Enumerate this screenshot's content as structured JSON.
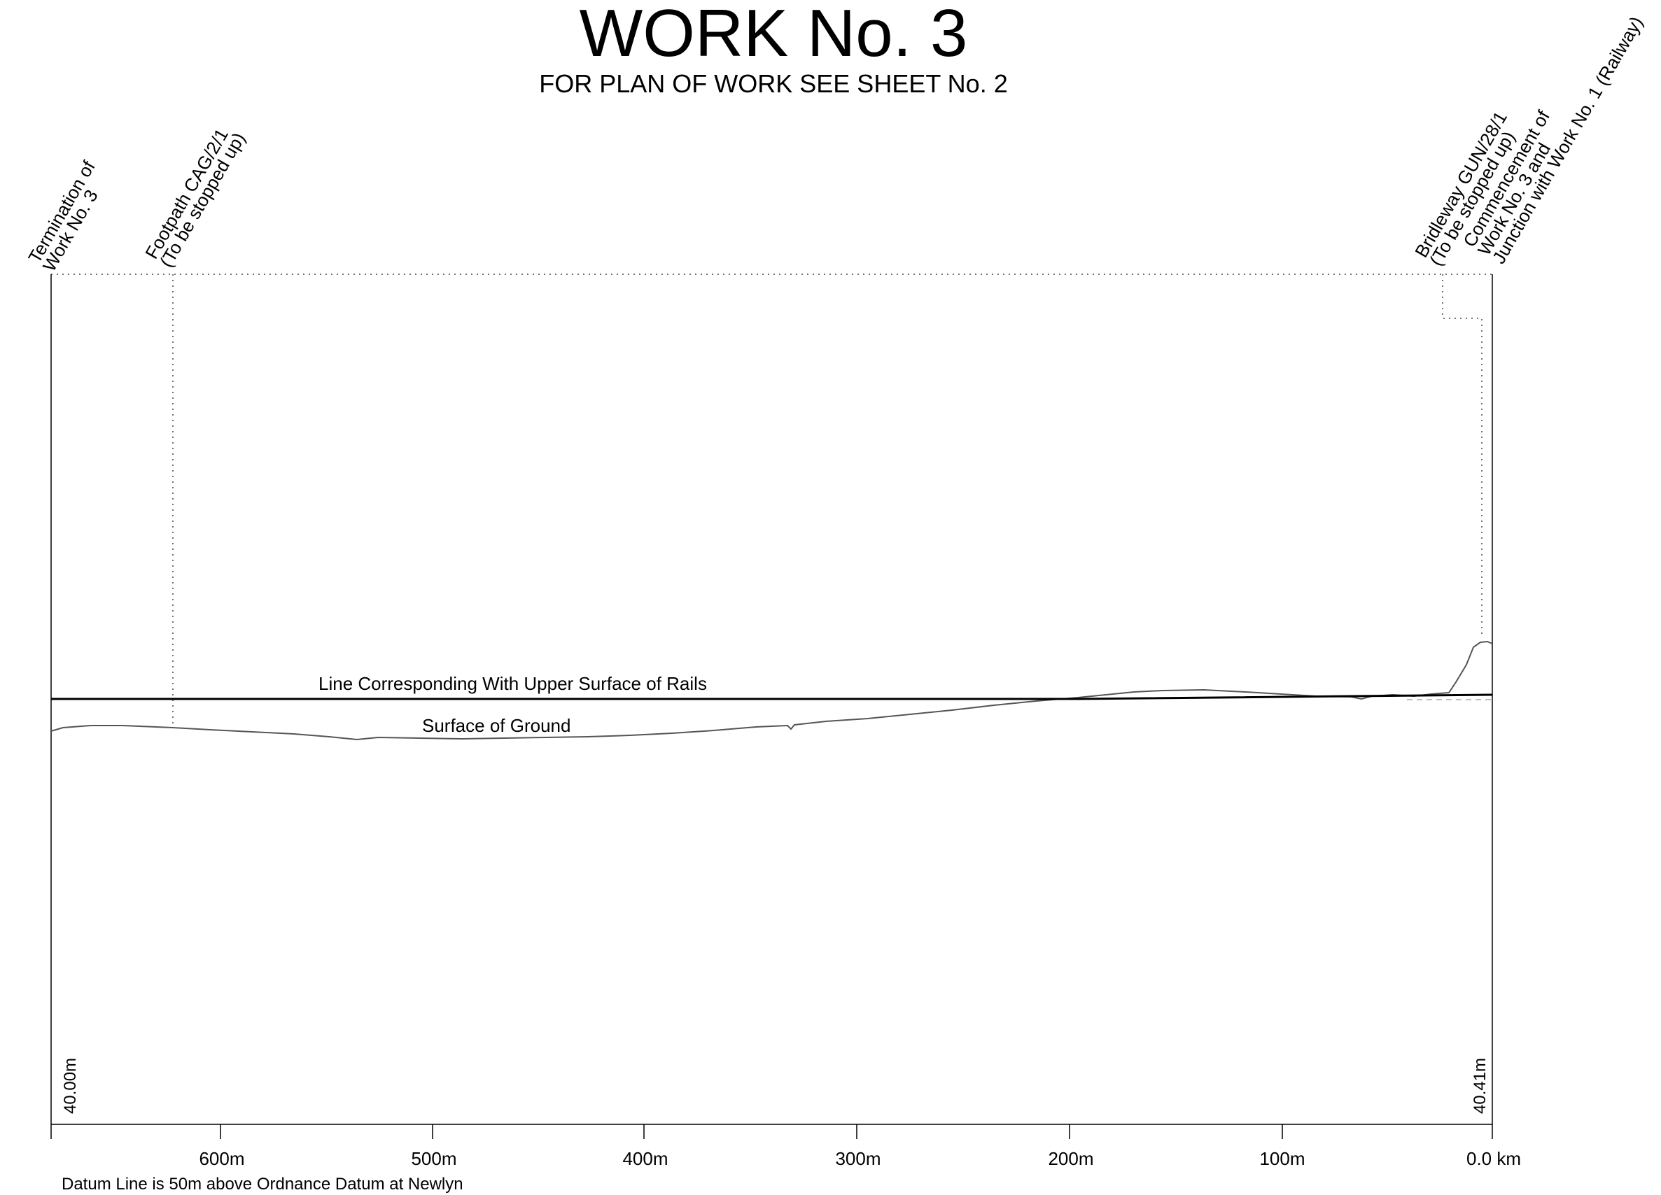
{
  "header": {
    "title": "WORK No. 3",
    "subtitle": "FOR PLAN OF WORK SEE SHEET No. 2"
  },
  "annotations": {
    "termination": [
      "Termination of",
      "Work No. 3"
    ],
    "footpath": [
      "Footpath CAG/2/1",
      "(To be stopped up)"
    ],
    "bridleway": [
      "Bridleway GUN/28/1",
      "(To be stopped up)"
    ],
    "commencement": [
      "Commencement of",
      "Work No. 3 and",
      "Junction with Work No. 1 (Railway)"
    ]
  },
  "lines": {
    "rails_label": "Line Corresponding With Upper Surface of Rails",
    "ground_label": "Surface of Ground"
  },
  "datum": {
    "left_level": "40.00m",
    "right_level": "40.41m",
    "note": "Datum Line is 50m above Ordnance Datum at Newlyn"
  },
  "axis": {
    "ticks": [
      {
        "label": "600m"
      },
      {
        "label": "500m"
      },
      {
        "label": "400m"
      },
      {
        "label": "300m"
      },
      {
        "label": "200m"
      },
      {
        "label": "100m"
      },
      {
        "label": "0.0 km"
      }
    ]
  },
  "colors": {
    "ink": "#000000",
    "ground": "#555555",
    "guide": "#444444"
  }
}
